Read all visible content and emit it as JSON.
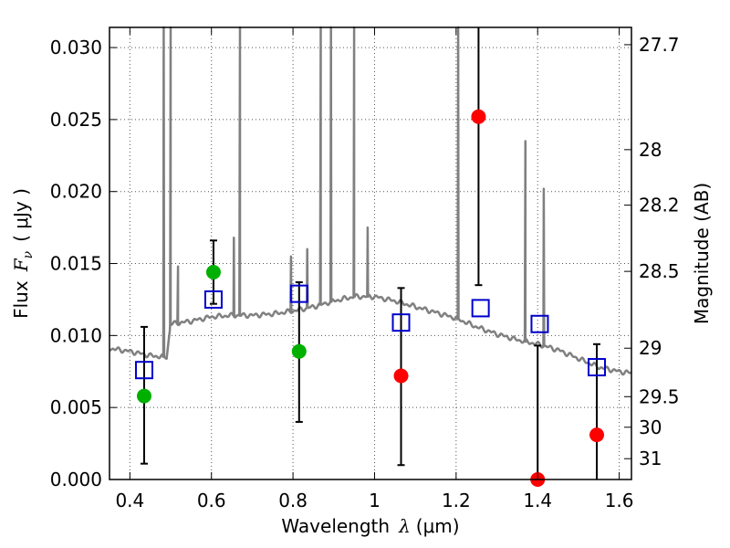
{
  "chart_data": {
    "type": "scatter",
    "xlabel": "Wavelength",
    "xlabel_symbol": "λ",
    "xlabel_unit": "(μm)",
    "ylabel": "Flux",
    "ylabel_symbol": "F",
    "ylabel_symbol_sub": "ν",
    "ylabel_unit": "( μJy )",
    "y2label": "Magnitude (AB)",
    "xlim": [
      0.35,
      1.63
    ],
    "ylim": [
      0.0,
      0.0314
    ],
    "grid": true,
    "x_ticks": [
      0.4,
      0.6,
      0.8,
      1.0,
      1.2,
      1.4,
      1.6
    ],
    "x_tick_labels": [
      "0.4",
      "0.6",
      "0.8",
      "1",
      "1.2",
      "1.4",
      "1.6"
    ],
    "y_ticks": [
      0.0,
      0.005,
      0.01,
      0.015,
      0.02,
      0.025,
      0.03
    ],
    "y_tick_labels": [
      "0.000",
      "0.005",
      "0.010",
      "0.015",
      "0.020",
      "0.025",
      "0.030"
    ],
    "y2_ticks": [
      {
        "mag": 27.7,
        "label": "27.7"
      },
      {
        "mag": 28,
        "label": "28"
      },
      {
        "mag": 28.2,
        "label": "28.2"
      },
      {
        "mag": 28.5,
        "label": "28.5"
      },
      {
        "mag": 29,
        "label": "29"
      },
      {
        "mag": 29.5,
        "label": "29.5"
      },
      {
        "mag": 30,
        "label": "30"
      },
      {
        "mag": 31,
        "label": "31"
      }
    ],
    "colors": {
      "spectrum": "#808080",
      "model": "#0000cc",
      "green": "#00b000",
      "red": "#ff0000",
      "grid": "#555555"
    },
    "spectrum": {
      "continuum": [
        [
          0.35,
          0.0091
        ],
        [
          0.4,
          0.0089
        ],
        [
          0.45,
          0.0086
        ],
        [
          0.49,
          0.0085
        ],
        [
          0.5,
          0.0108
        ],
        [
          0.55,
          0.011
        ],
        [
          0.6,
          0.0113
        ],
        [
          0.65,
          0.0114
        ],
        [
          0.7,
          0.0114
        ],
        [
          0.75,
          0.0115
        ],
        [
          0.8,
          0.0117
        ],
        [
          0.85,
          0.012
        ],
        [
          0.9,
          0.0124
        ],
        [
          0.95,
          0.0127
        ],
        [
          1.0,
          0.0127
        ],
        [
          1.05,
          0.0124
        ],
        [
          1.1,
          0.012
        ],
        [
          1.15,
          0.0116
        ],
        [
          1.2,
          0.0112
        ],
        [
          1.25,
          0.0106
        ],
        [
          1.3,
          0.0101
        ],
        [
          1.35,
          0.0097
        ],
        [
          1.4,
          0.0094
        ],
        [
          1.45,
          0.009
        ],
        [
          1.5,
          0.0084
        ],
        [
          1.55,
          0.0078
        ],
        [
          1.6,
          0.0075
        ],
        [
          1.63,
          0.0074
        ]
      ],
      "emission_lines": [
        [
          0.483,
          0.0314
        ],
        [
          0.5,
          0.0314
        ],
        [
          0.518,
          0.0148
        ],
        [
          0.655,
          0.0168
        ],
        [
          0.67,
          0.0314
        ],
        [
          0.795,
          0.0155
        ],
        [
          0.835,
          0.016
        ],
        [
          0.868,
          0.0314
        ],
        [
          0.893,
          0.0314
        ],
        [
          0.95,
          0.0314
        ],
        [
          0.983,
          0.0175
        ],
        [
          1.205,
          0.0314
        ],
        [
          1.37,
          0.0235
        ],
        [
          1.415,
          0.0202
        ]
      ]
    },
    "model_squares": [
      {
        "x": 0.435,
        "y": 0.0076
      },
      {
        "x": 0.605,
        "y": 0.0125
      },
      {
        "x": 0.815,
        "y": 0.0129
      },
      {
        "x": 1.065,
        "y": 0.0109
      },
      {
        "x": 1.26,
        "y": 0.0119
      },
      {
        "x": 1.405,
        "y": 0.0108
      },
      {
        "x": 1.545,
        "y": 0.0078
      }
    ],
    "observed": [
      {
        "x": 0.435,
        "y": 0.0058,
        "err_lo": 0.0011,
        "err_hi": 0.0106,
        "color": "green"
      },
      {
        "x": 0.605,
        "y": 0.0144,
        "err_lo": 0.0122,
        "err_hi": 0.0166,
        "color": "green"
      },
      {
        "x": 0.815,
        "y": 0.0089,
        "err_lo": 0.004,
        "err_hi": 0.0137,
        "color": "green"
      },
      {
        "x": 1.065,
        "y": 0.0072,
        "err_lo": 0.001,
        "err_hi": 0.0133,
        "color": "red"
      },
      {
        "x": 1.255,
        "y": 0.0252,
        "err_lo": 0.0135,
        "err_hi": 0.0314,
        "color": "red"
      },
      {
        "x": 1.4,
        "y": 0.0,
        "err_lo": 0.0,
        "err_hi": 0.0093,
        "color": "red"
      },
      {
        "x": 1.545,
        "y": 0.0031,
        "err_lo": 0.0,
        "err_hi": 0.0094,
        "color": "red"
      }
    ]
  }
}
